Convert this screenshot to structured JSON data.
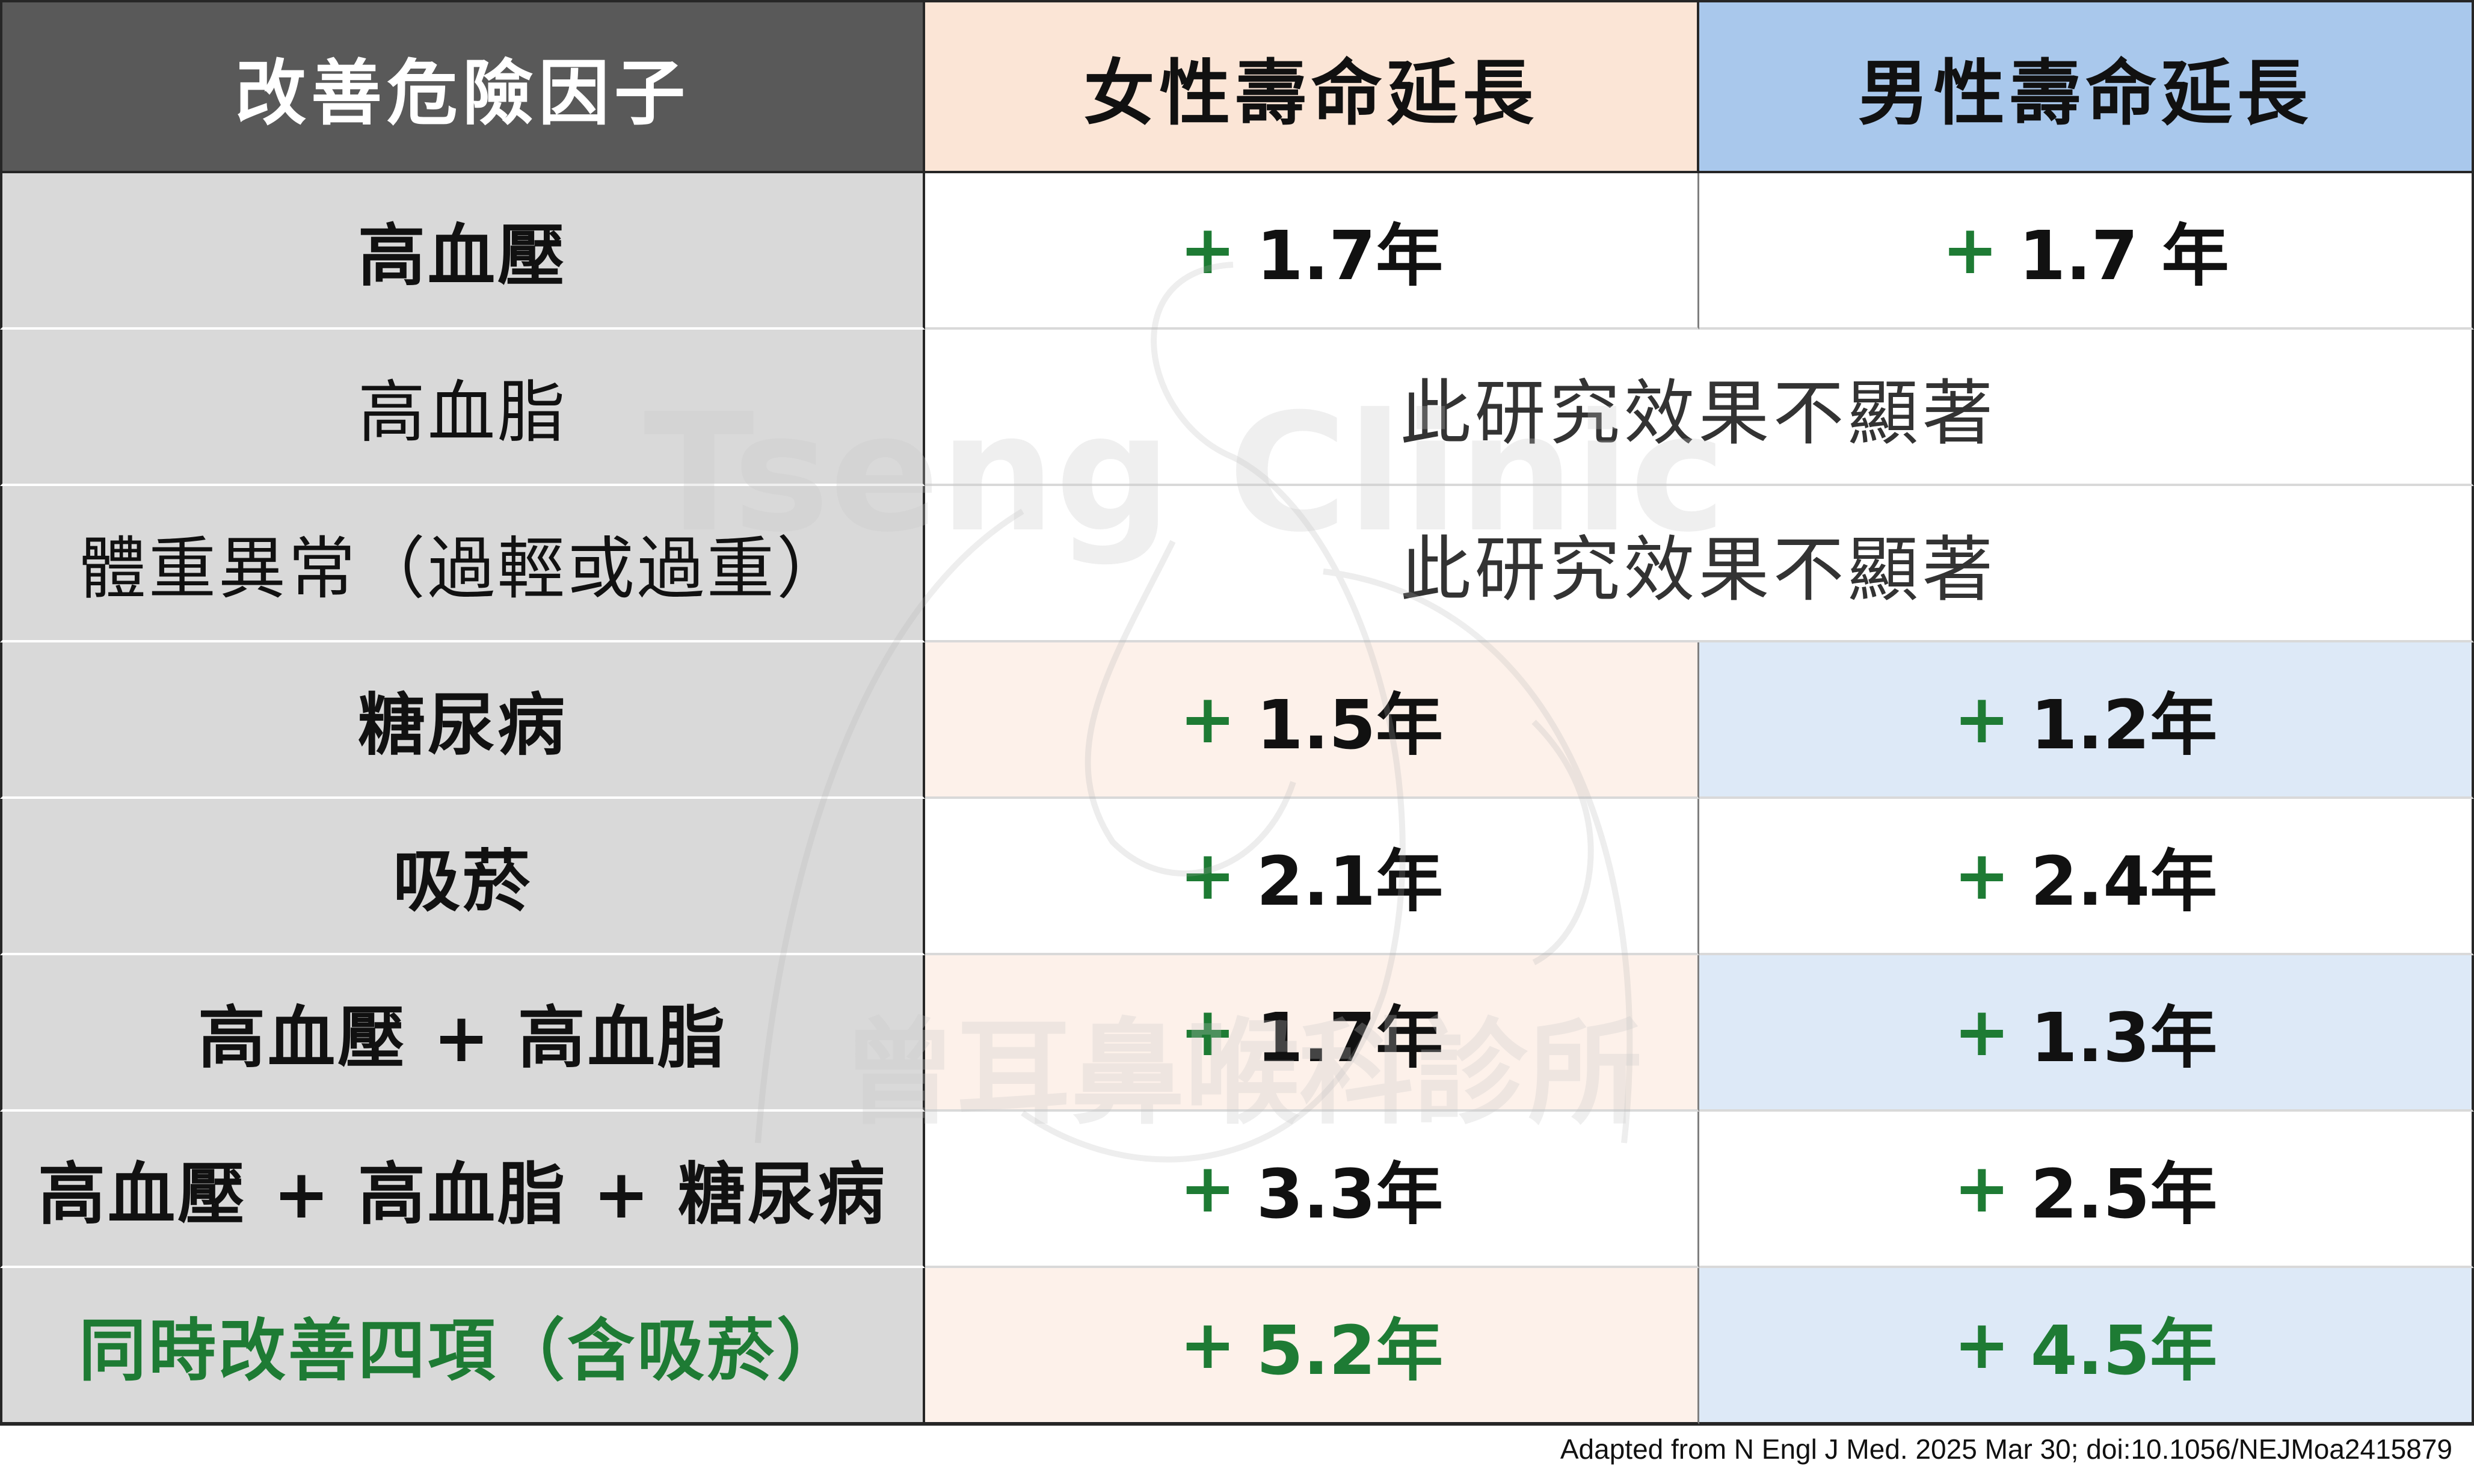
{
  "header": {
    "factor": "改善危險因子",
    "female": "女性壽命延長",
    "male": "男性壽命延長"
  },
  "rows": [
    {
      "factor": "高血壓",
      "female": "1.7年",
      "male": "1.7 年"
    },
    {
      "factor": "高血脂",
      "merged": "此研究效果不顯著"
    },
    {
      "factor": "體重異常（過輕或過重）",
      "merged": "此研究效果不顯著"
    },
    {
      "factor": "糖尿病",
      "female": "1.5年",
      "male": "1.2年"
    },
    {
      "factor": "吸菸",
      "female": "2.1年",
      "male": "2.4年"
    },
    {
      "factor": "高血壓 + 高血脂",
      "female": "1.7年",
      "male": "1.3年"
    },
    {
      "factor": "高血壓 + 高血脂 + 糖尿病",
      "female": "3.3年",
      "male": "2.5年"
    },
    {
      "factor": "同時改善四項（含吸菸）",
      "female": "5.2年",
      "male": "4.5年"
    }
  ],
  "plus_sign": "+",
  "watermark": {
    "latin": "Tseng Clinic",
    "chinese": "曾耳鼻喉科診所"
  },
  "source": "Adapted from N Engl J Med. 2025 Mar 30; doi:10.1056/NEJMoa2415879",
  "colors": {
    "header_factor_bg": "#595959",
    "header_female_bg": "#fbe5d6",
    "header_male_bg": "#a9c8ec",
    "factor_bg": "#d9d9d9",
    "female_tint": "#fdf1ea",
    "male_tint": "#dde9f7",
    "accent_green": "#1e7b34"
  }
}
